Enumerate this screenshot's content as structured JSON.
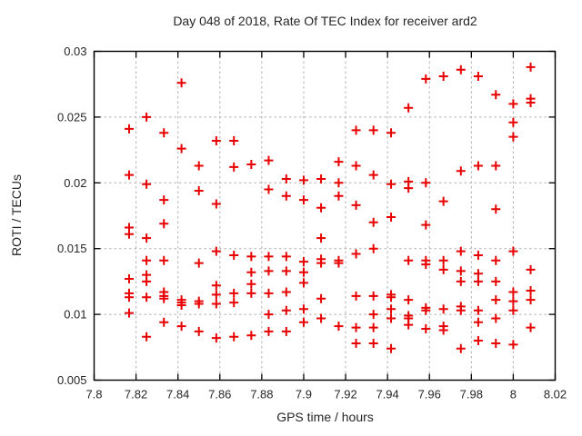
{
  "chart_data": {
    "type": "scatter",
    "title": "Day 048 of 2018, Rate Of TEC Index for receiver ard2",
    "xlabel": "GPS time / hours",
    "ylabel": "ROTI / TECUs",
    "xlim": [
      7.8,
      8.02
    ],
    "ylim": [
      0.005,
      0.03
    ],
    "x_ticks": [
      7.8,
      7.82,
      7.84,
      7.86,
      7.88,
      7.9,
      7.92,
      7.94,
      7.96,
      7.98,
      8.0,
      8.02
    ],
    "x_tick_labels": [
      "7.8",
      "7.82",
      "7.84",
      "7.86",
      "7.88",
      "7.9",
      "7.92",
      "7.94",
      "7.96",
      "7.98",
      "8",
      "8.02"
    ],
    "y_ticks": [
      0.005,
      0.01,
      0.015,
      0.02,
      0.025,
      0.03
    ],
    "y_tick_labels": [
      "0.005",
      "0.01",
      "0.015",
      "0.02",
      "0.025",
      "0.03"
    ],
    "grid": true,
    "legend": "none",
    "marker": "plus",
    "marker_color": "#e60000",
    "grid_color": "#b0b0b0",
    "border_color": "#000000",
    "columns": [
      {
        "x": 7.8167,
        "y": [
          0.0241,
          0.0206,
          0.0166,
          0.0161,
          0.0127,
          0.0116,
          0.0113,
          0.0101
        ]
      },
      {
        "x": 7.825,
        "y": [
          0.025,
          0.0199,
          0.0158,
          0.0141,
          0.013,
          0.0125,
          0.0113,
          0.0083
        ]
      },
      {
        "x": 7.8333,
        "y": [
          0.0238,
          0.0187,
          0.0169,
          0.0141,
          0.0117,
          0.0114,
          0.0112,
          0.0094
        ]
      },
      {
        "x": 7.8417,
        "y": [
          0.0276,
          0.0226,
          0.0111,
          0.0109,
          0.0107,
          0.0091
        ]
      },
      {
        "x": 7.85,
        "y": [
          0.0213,
          0.0194,
          0.0139,
          0.011,
          0.0108,
          0.0087
        ]
      },
      {
        "x": 7.8583,
        "y": [
          0.0232,
          0.0184,
          0.0148,
          0.0122,
          0.0115,
          0.0108,
          0.0082
        ]
      },
      {
        "x": 7.8667,
        "y": [
          0.0232,
          0.0212,
          0.0145,
          0.0116,
          0.0109,
          0.0083
        ]
      },
      {
        "x": 7.875,
        "y": [
          0.0214,
          0.0144,
          0.0132,
          0.0123,
          0.0116,
          0.0084
        ]
      },
      {
        "x": 7.8833,
        "y": [
          0.0217,
          0.0195,
          0.0144,
          0.0133,
          0.0116,
          0.01,
          0.0087
        ]
      },
      {
        "x": 7.8917,
        "y": [
          0.0203,
          0.019,
          0.0144,
          0.0133,
          0.0117,
          0.0103,
          0.0087
        ]
      },
      {
        "x": 7.9,
        "y": [
          0.0202,
          0.0187,
          0.014,
          0.0132,
          0.0124,
          0.0104,
          0.0094
        ]
      },
      {
        "x": 7.9083,
        "y": [
          0.0203,
          0.0181,
          0.0158,
          0.0142,
          0.0139,
          0.0112,
          0.0097
        ]
      },
      {
        "x": 7.9167,
        "y": [
          0.0216,
          0.02,
          0.019,
          0.0141,
          0.0139,
          0.0091
        ]
      },
      {
        "x": 7.925,
        "y": [
          0.024,
          0.0213,
          0.0183,
          0.0146,
          0.0114,
          0.009,
          0.0078
        ]
      },
      {
        "x": 7.9333,
        "y": [
          0.024,
          0.0206,
          0.017,
          0.015,
          0.0114,
          0.01,
          0.009,
          0.0078
        ]
      },
      {
        "x": 7.9417,
        "y": [
          0.0238,
          0.0199,
          0.0174,
          0.0115,
          0.0113,
          0.0104,
          0.0097,
          0.0074
        ]
      },
      {
        "x": 7.95,
        "y": [
          0.0257,
          0.0201,
          0.0196,
          0.0141,
          0.0111,
          0.0099,
          0.0097,
          0.0092
        ]
      },
      {
        "x": 7.9583,
        "y": [
          0.0279,
          0.02,
          0.0168,
          0.0141,
          0.0138,
          0.0105,
          0.0103,
          0.0089
        ]
      },
      {
        "x": 7.9667,
        "y": [
          0.0281,
          0.0186,
          0.0141,
          0.0134,
          0.0104,
          0.0091,
          0.0088
        ]
      },
      {
        "x": 7.975,
        "y": [
          0.0286,
          0.0209,
          0.0148,
          0.0133,
          0.0125,
          0.0106,
          0.0103,
          0.0074
        ]
      },
      {
        "x": 7.9833,
        "y": [
          0.0281,
          0.0213,
          0.0145,
          0.0131,
          0.0125,
          0.0103,
          0.0094,
          0.008
        ]
      },
      {
        "x": 7.9917,
        "y": [
          0.0267,
          0.0213,
          0.018,
          0.0141,
          0.0125,
          0.0111,
          0.0097,
          0.0078
        ]
      },
      {
        "x": 8.0,
        "y": [
          0.026,
          0.0246,
          0.0235,
          0.0148,
          0.0117,
          0.011,
          0.0103,
          0.0077
        ]
      },
      {
        "x": 8.0083,
        "y": [
          0.0288,
          0.0264,
          0.0261,
          0.0134,
          0.0118,
          0.0111,
          0.009
        ]
      }
    ]
  }
}
